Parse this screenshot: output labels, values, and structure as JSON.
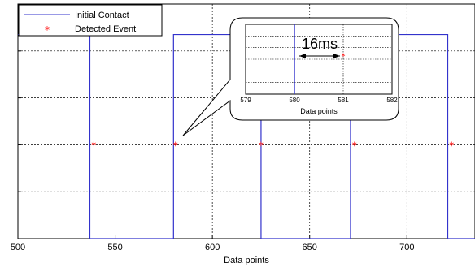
{
  "chart_data": [
    {
      "type": "line",
      "xlabel": "Data points",
      "ylabel": "",
      "xlim": [
        500,
        735
      ],
      "ylim": [
        0,
        1
      ],
      "xticks": [
        500,
        550,
        600,
        650,
        700
      ],
      "yticks": [
        0,
        0.2,
        0.4,
        0.6,
        0.8,
        1.0
      ],
      "grid": true,
      "legend_position": "top-left",
      "series": [
        {
          "name": "Initial Contact",
          "style": "line",
          "color": "#3333cc",
          "x": [
            500,
            537,
            537,
            580,
            580,
            625,
            625,
            671,
            671,
            721,
            721,
            735
          ],
          "y": [
            0.87,
            0.87,
            0,
            0,
            0.87,
            0.87,
            0,
            0,
            0.87,
            0.87,
            0,
            0
          ]
        },
        {
          "name": "Detected Event",
          "style": "marker",
          "color": "#ff0000",
          "x": [
            539,
            581,
            625,
            673,
            723
          ],
          "y": [
            0.4,
            0.4,
            0.4,
            0.4,
            0.4
          ]
        }
      ]
    },
    {
      "type": "line",
      "role": "inset zoom",
      "xlabel": "Data points",
      "xlim": [
        579,
        582
      ],
      "xticks": [
        579,
        580,
        581,
        582
      ],
      "grid": true,
      "annotation": "16ms",
      "series": [
        {
          "name": "Initial Contact",
          "style": "line",
          "color": "#3333cc",
          "x": [
            580,
            580
          ],
          "y": [
            0,
            1
          ]
        },
        {
          "name": "Detected Event",
          "style": "marker",
          "color": "#ff0000",
          "x": [
            581
          ],
          "y": [
            0.55
          ]
        }
      ]
    }
  ]
}
